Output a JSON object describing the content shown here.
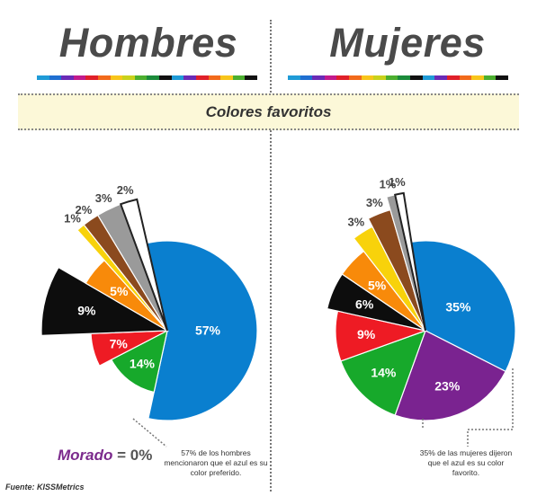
{
  "header": {
    "left_title": "Hombres",
    "right_title": "Mujeres",
    "banner": "Colores favoritos",
    "spectrum_colors": [
      "#1f9bd7",
      "#1f6fd1",
      "#6a2bb6",
      "#c21a8c",
      "#e0202a",
      "#f26a1b",
      "#f8c51b",
      "#c9d21b",
      "#4caf2f",
      "#1b8b3b",
      "#111111",
      "#1f9bd7",
      "#6a2bb6",
      "#e0202a",
      "#f26a1b",
      "#f8c51b",
      "#4caf2f",
      "#111111"
    ]
  },
  "notes": {
    "left": "57% de los hombres mencionaron que el azul es su color preferido.",
    "right": "35% de las mujeres dijeron que el azul es su color favorito.",
    "morado_word": "Morado",
    "morado_value": " = 0%",
    "source": "Fuente: KISSMetrics"
  },
  "chart_data": [
    {
      "type": "pie",
      "title": "Hombres",
      "slices": [
        {
          "color_name": "azul",
          "value": 57,
          "label": "57%",
          "color": "#0a7fcf"
        },
        {
          "color_name": "verde",
          "value": 14,
          "label": "14%",
          "color": "#17a92b"
        },
        {
          "color_name": "rojo",
          "value": 7,
          "label": "7%",
          "color": "#ee1b24"
        },
        {
          "color_name": "negro",
          "value": 9,
          "label": "9%",
          "color": "#0d0d0d"
        },
        {
          "color_name": "naranja",
          "value": 5,
          "label": "5%",
          "color": "#f88a0a"
        },
        {
          "color_name": "amarillo",
          "value": 1,
          "label": "1%",
          "color": "#f8d20b"
        },
        {
          "color_name": "marron",
          "value": 2,
          "label": "2%",
          "color": "#8b4a1e"
        },
        {
          "color_name": "gris",
          "value": 3,
          "label": "3%",
          "color": "#9a9a9a"
        },
        {
          "color_name": "blanco",
          "value": 2,
          "label": "2%",
          "color": "#ffffff"
        }
      ]
    },
    {
      "type": "pie",
      "title": "Mujeres",
      "slices": [
        {
          "color_name": "azul",
          "value": 35,
          "label": "35%",
          "color": "#0a7fcf"
        },
        {
          "color_name": "morado",
          "value": 23,
          "label": "23%",
          "color": "#7a2390"
        },
        {
          "color_name": "verde",
          "value": 14,
          "label": "14%",
          "color": "#17a92b"
        },
        {
          "color_name": "rojo",
          "value": 9,
          "label": "9%",
          "color": "#ee1b24"
        },
        {
          "color_name": "negro",
          "value": 6,
          "label": "6%",
          "color": "#0d0d0d"
        },
        {
          "color_name": "naranja",
          "value": 5,
          "label": "5%",
          "color": "#f88a0a"
        },
        {
          "color_name": "amarillo",
          "value": 3,
          "label": "3%",
          "color": "#f8d20b"
        },
        {
          "color_name": "marron",
          "value": 3,
          "label": "3%",
          "color": "#8b4a1e"
        },
        {
          "color_name": "gris",
          "value": 1,
          "label": "1%",
          "color": "#9a9a9a"
        },
        {
          "color_name": "blanco",
          "value": 1,
          "label": "1%",
          "color": "#ffffff"
        }
      ]
    }
  ]
}
